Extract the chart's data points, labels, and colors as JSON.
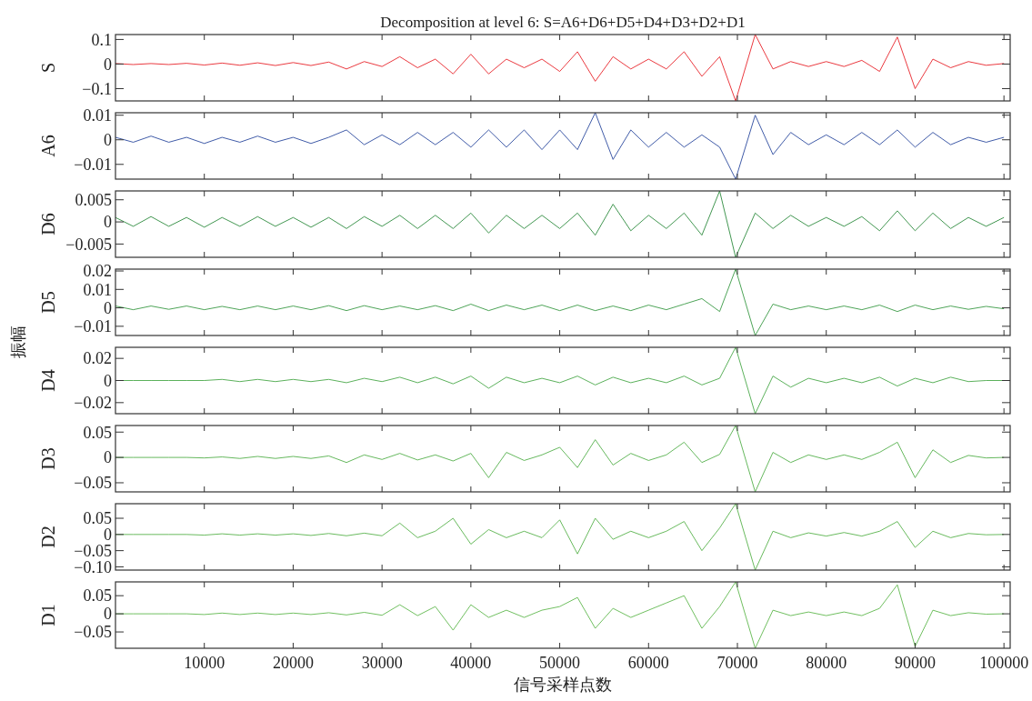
{
  "chart_data": [
    {
      "type": "line",
      "title": "Decomposition at level 6: S=A6+D6+D5+D4+D3+D2+D1",
      "ylabel": "S",
      "tick_labels": "y",
      "xlim": [
        0,
        100700
      ],
      "xticks": [
        10000,
        20000,
        30000,
        40000,
        50000,
        60000,
        70000,
        80000,
        90000,
        100000
      ],
      "ylim": [
        -0.15,
        0.12
      ],
      "yticks": [
        {
          "value": -0.1,
          "label": "−0.1"
        },
        0,
        0.1
      ],
      "x": [
        0,
        2000,
        4000,
        6000,
        8000,
        10000,
        12000,
        14000,
        16000,
        18000,
        20000,
        22000,
        24000,
        26000,
        28000,
        30000,
        32000,
        34000,
        36000,
        38000,
        40000,
        42000,
        44000,
        46000,
        48000,
        50000,
        52000,
        54000,
        56000,
        58000,
        60000,
        62000,
        64000,
        66000,
        68000,
        69800,
        72000,
        74000,
        76000,
        78000,
        80000,
        82000,
        84000,
        86000,
        88000,
        90000,
        92000,
        94000,
        96000,
        98000,
        100000
      ],
      "series": [
        {
          "color": "#e8242a",
          "values": [
            0.002,
            -0.002,
            0.002,
            -0.002,
            0.003,
            -0.004,
            0.004,
            -0.005,
            0.005,
            -0.006,
            0.006,
            -0.006,
            0.008,
            -0.02,
            0.01,
            -0.01,
            0.03,
            -0.015,
            0.02,
            -0.04,
            0.04,
            -0.04,
            0.02,
            -0.015,
            0.02,
            -0.03,
            0.05,
            -0.07,
            0.03,
            -0.02,
            0.02,
            -0.02,
            0.05,
            -0.05,
            0.03,
            -0.15,
            0.12,
            -0.02,
            0.01,
            -0.01,
            0.01,
            -0.01,
            0.015,
            -0.03,
            0.11,
            -0.1,
            0.02,
            -0.015,
            0.01,
            -0.005,
            0.002
          ]
        }
      ]
    },
    {
      "type": "line",
      "ylabel": "A6",
      "tick_labels": "y",
      "xlim": [
        0,
        100700
      ],
      "xticks": [
        10000,
        20000,
        30000,
        40000,
        50000,
        60000,
        70000,
        80000,
        90000,
        100000
      ],
      "ylim": [
        -0.016,
        0.011
      ],
      "yticks": [
        {
          "value": -0.01,
          "label": "−0.01"
        },
        0,
        0.01
      ],
      "x": [
        0,
        2000,
        4000,
        6000,
        8000,
        10000,
        12000,
        14000,
        16000,
        18000,
        20000,
        22000,
        24000,
        26000,
        28000,
        30000,
        32000,
        34000,
        36000,
        38000,
        40000,
        42000,
        44000,
        46000,
        48000,
        50000,
        52000,
        54000,
        56000,
        58000,
        60000,
        62000,
        64000,
        66000,
        68000,
        69800,
        72000,
        74000,
        76000,
        78000,
        80000,
        82000,
        84000,
        86000,
        88000,
        90000,
        92000,
        94000,
        96000,
        98000,
        100000
      ],
      "series": [
        {
          "color": "#2b4a9e",
          "values": [
            0.001,
            -0.001,
            0.0015,
            -0.001,
            0.001,
            -0.0015,
            0.001,
            -0.001,
            0.0015,
            -0.001,
            0.001,
            -0.0015,
            0.001,
            0.004,
            -0.002,
            0.002,
            -0.002,
            0.003,
            -0.002,
            0.003,
            -0.003,
            0.004,
            -0.003,
            0.004,
            -0.004,
            0.004,
            -0.004,
            0.011,
            -0.008,
            0.004,
            -0.003,
            0.003,
            -0.003,
            0.002,
            -0.003,
            -0.016,
            0.01,
            -0.006,
            0.003,
            -0.002,
            0.002,
            -0.002,
            0.003,
            -0.002,
            0.004,
            -0.003,
            0.003,
            -0.002,
            0.001,
            -0.001,
            0.001
          ]
        }
      ]
    },
    {
      "type": "line",
      "ylabel": "D6",
      "tick_labels": "y",
      "xlim": [
        0,
        100700
      ],
      "xticks": [
        10000,
        20000,
        30000,
        40000,
        50000,
        60000,
        70000,
        80000,
        90000,
        100000
      ],
      "ylim": [
        -0.008,
        0.007
      ],
      "yticks": [
        {
          "value": -0.005,
          "label": "−0.005"
        },
        0,
        0.005
      ],
      "x": [
        0,
        2000,
        4000,
        6000,
        8000,
        10000,
        12000,
        14000,
        16000,
        18000,
        20000,
        22000,
        24000,
        26000,
        28000,
        30000,
        32000,
        34000,
        36000,
        38000,
        40000,
        42000,
        44000,
        46000,
        48000,
        50000,
        52000,
        54000,
        56000,
        58000,
        60000,
        62000,
        64000,
        66000,
        68000,
        69800,
        72000,
        74000,
        76000,
        78000,
        80000,
        82000,
        84000,
        86000,
        88000,
        90000,
        92000,
        94000,
        96000,
        98000,
        100000
      ],
      "series": [
        {
          "color": "#2e8b3e",
          "values": [
            0.001,
            -0.001,
            0.0012,
            -0.001,
            0.001,
            -0.0012,
            0.001,
            -0.001,
            0.0012,
            -0.001,
            0.001,
            -0.0012,
            0.001,
            -0.0015,
            0.0012,
            -0.001,
            0.0015,
            -0.0015,
            0.0015,
            -0.0015,
            0.002,
            -0.0025,
            0.0015,
            -0.0015,
            0.0015,
            -0.0015,
            0.002,
            -0.003,
            0.004,
            -0.002,
            0.0015,
            -0.0015,
            0.002,
            -0.003,
            0.007,
            -0.008,
            0.002,
            -0.0015,
            0.0015,
            -0.001,
            0.001,
            -0.001,
            0.0012,
            -0.002,
            0.0025,
            -0.002,
            0.002,
            -0.0015,
            0.001,
            -0.001,
            0.001
          ]
        }
      ]
    },
    {
      "type": "line",
      "ylabel": "D5",
      "tick_labels": "y",
      "xlim": [
        0,
        100700
      ],
      "xticks": [
        10000,
        20000,
        30000,
        40000,
        50000,
        60000,
        70000,
        80000,
        90000,
        100000
      ],
      "ylim": [
        -0.015,
        0.021
      ],
      "yticks": [
        {
          "value": -0.01,
          "label": "−0.01"
        },
        0,
        0.01,
        0.02
      ],
      "x": [
        0,
        2000,
        4000,
        6000,
        8000,
        10000,
        12000,
        14000,
        16000,
        18000,
        20000,
        22000,
        24000,
        26000,
        28000,
        30000,
        32000,
        34000,
        36000,
        38000,
        40000,
        42000,
        44000,
        46000,
        48000,
        50000,
        52000,
        54000,
        56000,
        58000,
        60000,
        62000,
        64000,
        66000,
        68000,
        69800,
        72000,
        74000,
        76000,
        78000,
        80000,
        82000,
        84000,
        86000,
        88000,
        90000,
        92000,
        94000,
        96000,
        98000,
        100000
      ],
      "series": [
        {
          "color": "#3a9a45",
          "values": [
            0.001,
            -0.001,
            0.001,
            -0.0008,
            0.001,
            -0.001,
            0.0008,
            -0.001,
            0.001,
            -0.001,
            0.001,
            -0.001,
            0.0012,
            -0.0015,
            0.0012,
            -0.001,
            0.001,
            -0.001,
            0.0012,
            -0.0015,
            0.002,
            -0.0015,
            0.0015,
            -0.001,
            0.0015,
            -0.0015,
            0.0015,
            -0.0015,
            0.001,
            -0.0015,
            0.0015,
            -0.001,
            0.002,
            0.005,
            -0.002,
            0.021,
            -0.015,
            0.002,
            -0.001,
            0.001,
            -0.001,
            0.001,
            -0.001,
            0.0015,
            -0.002,
            0.0015,
            -0.001,
            0.001,
            -0.0008,
            0.0008,
            -0.0005
          ]
        }
      ]
    },
    {
      "type": "line",
      "ylabel": "D4",
      "annotations": [
        "振幅"
      ],
      "tick_labels": "y",
      "xlim": [
        0,
        100700
      ],
      "xticks": [
        10000,
        20000,
        30000,
        40000,
        50000,
        60000,
        70000,
        80000,
        90000,
        100000
      ],
      "ylim": [
        -0.03,
        0.03
      ],
      "yticks": [
        {
          "value": -0.02,
          "label": "−0.02"
        },
        0,
        0.02
      ],
      "x": [
        0,
        2000,
        4000,
        6000,
        8000,
        10000,
        12000,
        14000,
        16000,
        18000,
        20000,
        22000,
        24000,
        26000,
        28000,
        30000,
        32000,
        34000,
        36000,
        38000,
        40000,
        42000,
        44000,
        46000,
        48000,
        50000,
        52000,
        54000,
        56000,
        58000,
        60000,
        62000,
        64000,
        66000,
        68000,
        69800,
        72000,
        74000,
        76000,
        78000,
        80000,
        82000,
        84000,
        86000,
        88000,
        90000,
        92000,
        94000,
        96000,
        98000,
        100000
      ],
      "series": [
        {
          "color": "#4aa84a",
          "values": [
            0,
            0,
            0,
            0,
            0,
            0,
            0.001,
            -0.001,
            0.001,
            -0.001,
            0.001,
            -0.001,
            0.001,
            -0.002,
            0.002,
            -0.001,
            0.003,
            -0.002,
            0.003,
            -0.003,
            0.004,
            -0.007,
            0.003,
            -0.002,
            0.002,
            -0.002,
            0.004,
            -0.004,
            0.003,
            -0.002,
            0.002,
            -0.002,
            0.004,
            -0.004,
            0.002,
            0.03,
            -0.03,
            0.004,
            -0.006,
            0.002,
            -0.002,
            0.002,
            -0.002,
            0.003,
            -0.005,
            0.002,
            -0.002,
            0.003,
            -0.001,
            0,
            0
          ]
        }
      ]
    },
    {
      "type": "line",
      "ylabel": "D3",
      "tick_labels": "y",
      "xlim": [
        0,
        100700
      ],
      "xticks": [
        10000,
        20000,
        30000,
        40000,
        50000,
        60000,
        70000,
        80000,
        90000,
        100000
      ],
      "ylim": [
        -0.068,
        0.063
      ],
      "yticks": [
        {
          "value": -0.05,
          "label": "−0.05"
        },
        0,
        0.05
      ],
      "x": [
        0,
        2000,
        4000,
        6000,
        8000,
        10000,
        12000,
        14000,
        16000,
        18000,
        20000,
        22000,
        24000,
        26000,
        28000,
        30000,
        32000,
        34000,
        36000,
        38000,
        40000,
        42000,
        44000,
        46000,
        48000,
        50000,
        52000,
        54000,
        56000,
        58000,
        60000,
        62000,
        64000,
        66000,
        68000,
        69800,
        72000,
        74000,
        76000,
        78000,
        80000,
        82000,
        84000,
        86000,
        88000,
        90000,
        92000,
        94000,
        96000,
        98000,
        100000
      ],
      "series": [
        {
          "color": "#55b04c",
          "values": [
            0,
            0,
            0,
            0,
            0,
            -0.001,
            0.001,
            -0.002,
            0.002,
            -0.002,
            0.002,
            -0.002,
            0.003,
            -0.01,
            0.005,
            -0.004,
            0.008,
            -0.005,
            0.005,
            -0.007,
            0.008,
            -0.04,
            0.01,
            -0.006,
            0.005,
            0.02,
            -0.02,
            0.035,
            -0.015,
            0.008,
            -0.006,
            0.005,
            0.03,
            -0.01,
            0.006,
            0.063,
            -0.068,
            0.01,
            -0.01,
            0.005,
            -0.004,
            0.005,
            -0.004,
            0.01,
            0.03,
            -0.04,
            0.015,
            -0.01,
            0.004,
            -0.001,
            0
          ]
        }
      ]
    },
    {
      "type": "line",
      "ylabel": "D2",
      "tick_labels": "y",
      "xlim": [
        0,
        100700
      ],
      "xticks": [
        10000,
        20000,
        30000,
        40000,
        50000,
        60000,
        70000,
        80000,
        90000,
        100000
      ],
      "ylim": [
        -0.11,
        0.095
      ],
      "yticks": [
        {
          "value": -0.1,
          "label": "−0.10"
        },
        {
          "value": -0.05,
          "label": "−0.05"
        },
        0,
        0.05
      ],
      "x": [
        0,
        2000,
        4000,
        6000,
        8000,
        10000,
        12000,
        14000,
        16000,
        18000,
        20000,
        22000,
        24000,
        26000,
        28000,
        30000,
        32000,
        34000,
        36000,
        38000,
        40000,
        42000,
        44000,
        46000,
        48000,
        50000,
        52000,
        54000,
        56000,
        58000,
        60000,
        62000,
        64000,
        66000,
        68000,
        69800,
        72000,
        74000,
        76000,
        78000,
        80000,
        82000,
        84000,
        86000,
        88000,
        90000,
        92000,
        94000,
        96000,
        98000,
        100000
      ],
      "series": [
        {
          "color": "#58b24c",
          "values": [
            0,
            0,
            0,
            0,
            0,
            -0.002,
            0.002,
            -0.002,
            0.002,
            -0.002,
            0.002,
            -0.003,
            0.003,
            -0.004,
            0.004,
            -0.004,
            0.035,
            -0.01,
            0.01,
            0.05,
            -0.03,
            0.015,
            -0.01,
            0.01,
            -0.01,
            0.045,
            -0.06,
            0.05,
            -0.015,
            0.01,
            -0.01,
            0.01,
            0.04,
            -0.05,
            0.02,
            0.095,
            -0.11,
            0.01,
            -0.01,
            0.005,
            -0.005,
            0.006,
            -0.005,
            0.01,
            0.04,
            -0.04,
            0.01,
            -0.01,
            0.003,
            -0.001,
            0
          ]
        }
      ]
    },
    {
      "type": "line",
      "ylabel": "D1",
      "xlabel": "信号采样点数",
      "xlim": [
        0,
        100700
      ],
      "xticks": [
        10000,
        20000,
        30000,
        40000,
        50000,
        60000,
        70000,
        80000,
        90000,
        100000
      ],
      "ylim": [
        -0.095,
        0.088
      ],
      "yticks": [
        {
          "value": -0.05,
          "label": "−0.05"
        },
        0,
        0.05
      ],
      "x": [
        0,
        2000,
        4000,
        6000,
        8000,
        10000,
        12000,
        14000,
        16000,
        18000,
        20000,
        22000,
        24000,
        26000,
        28000,
        30000,
        32000,
        34000,
        36000,
        38000,
        40000,
        42000,
        44000,
        46000,
        48000,
        50000,
        52000,
        54000,
        56000,
        58000,
        60000,
        62000,
        64000,
        66000,
        68000,
        69800,
        72000,
        74000,
        76000,
        78000,
        80000,
        82000,
        84000,
        86000,
        88000,
        90000,
        92000,
        94000,
        96000,
        98000,
        100000
      ],
      "series": [
        {
          "color": "#60b84e",
          "values": [
            0,
            0,
            0,
            0,
            0,
            -0.002,
            0.002,
            -0.002,
            0.002,
            -0.002,
            0.002,
            -0.002,
            0.003,
            -0.003,
            0.004,
            -0.004,
            0.025,
            -0.005,
            0.02,
            -0.045,
            0.025,
            -0.01,
            0.01,
            -0.01,
            0.01,
            0.02,
            0.045,
            -0.04,
            0.015,
            -0.01,
            0.01,
            0.03,
            0.05,
            -0.04,
            0.02,
            0.088,
            -0.095,
            0.01,
            -0.005,
            0.005,
            -0.005,
            0.005,
            -0.005,
            0.015,
            0.08,
            -0.09,
            0.01,
            -0.005,
            0.003,
            -0.001,
            0
          ]
        }
      ]
    }
  ]
}
